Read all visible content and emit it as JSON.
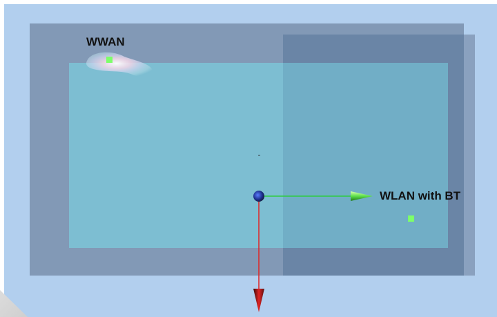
{
  "scene": {
    "labels": {
      "wwan": "WWAN",
      "wlan_bt": "WLAN with BT"
    },
    "icons": {
      "origin": "origin-sphere-icon",
      "x_axis": "x-axis-arrow-icon",
      "y_axis": "y-axis-arrow-icon"
    },
    "colors": {
      "background": "#b2cfee",
      "panel": "#8299b6",
      "board": "#7dc4d7",
      "antenna_marker": "#7dff6a",
      "x_axis": "#2ecc40",
      "y_axis": "#e02424",
      "origin": "#2244cc"
    }
  }
}
